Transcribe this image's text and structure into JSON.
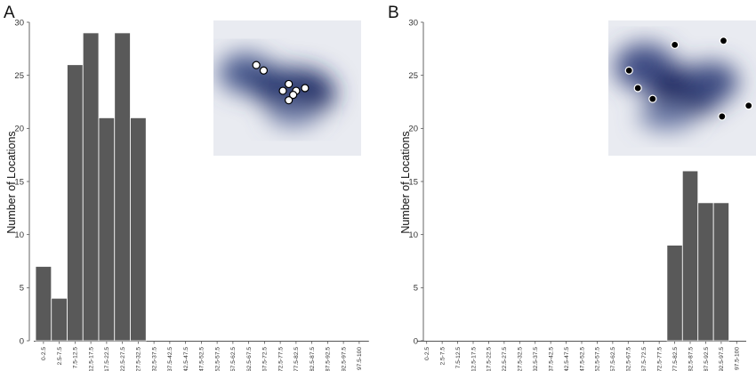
{
  "chart_data": [
    {
      "type": "bar",
      "panel_label": "A",
      "ylabel": "Number of Locations",
      "ylim": [
        0,
        30
      ],
      "yticks": [
        "0",
        "5",
        "10",
        "15",
        "20",
        "25",
        "30"
      ],
      "categories": [
        "0-2.5",
        "2.5-7.5",
        "7.5-12.5",
        "12.5-17.5",
        "17.5-22.5",
        "22.5-27.5",
        "27.5-32.5",
        "32.5-37.5",
        "37.5-42.5",
        "42.5-47.5",
        "47.5-52.5",
        "52.5-57.5",
        "57.5-62.5",
        "62.5-67.5",
        "67.5-72.5",
        "72.5-77.5",
        "77.5-82.5",
        "82.5-87.5",
        "87.5-92.5",
        "92.5-97.5",
        "97.5-100"
      ],
      "values": [
        7,
        4,
        26,
        29,
        21,
        29,
        21,
        0,
        0,
        0,
        0,
        0,
        0,
        0,
        0,
        0,
        0,
        0,
        0,
        0,
        0
      ],
      "inset": {
        "kind": "density-heatmap",
        "colors": {
          "low": "#e9ebf1",
          "high": "#0f1c52",
          "marker_fill": "#ffffff",
          "marker_stroke": "#000000"
        },
        "points": [
          [
            0.29,
            0.33
          ],
          [
            0.34,
            0.37
          ],
          [
            0.51,
            0.47
          ],
          [
            0.47,
            0.52
          ],
          [
            0.56,
            0.52
          ],
          [
            0.62,
            0.5
          ],
          [
            0.54,
            0.55
          ],
          [
            0.51,
            0.59
          ]
        ]
      }
    },
    {
      "type": "bar",
      "panel_label": "B",
      "ylabel": "Number of Locations",
      "ylim": [
        0,
        30
      ],
      "yticks": [
        "0",
        "5",
        "10",
        "15",
        "20",
        "25",
        "30"
      ],
      "categories": [
        "0-2.5",
        "2.5-7.5",
        "7.5-12.5",
        "12.5-17.5",
        "17.5-22.5",
        "22.5-27.5",
        "27.5-32.5",
        "32.5-37.5",
        "37.5-42.5",
        "42.5-47.5",
        "47.5-52.5",
        "52.5-57.5",
        "57.5-62.5",
        "62.5-67.5",
        "67.5-72.5",
        "72.5-77.5",
        "77.5-82.5",
        "82.5-87.5",
        "87.5-92.5",
        "92.5-97.5",
        "97.5-100"
      ],
      "values": [
        0,
        0,
        0,
        0,
        0,
        0,
        0,
        0,
        0,
        0,
        0,
        0,
        0,
        0,
        0,
        0,
        9,
        16,
        13,
        13,
        0
      ],
      "inset": {
        "kind": "density-heatmap",
        "colors": {
          "low": "#e9ebf1",
          "high": "#0f1c52",
          "marker_fill": "#000000",
          "marker_stroke": "#ffffff"
        },
        "points": [
          [
            0.45,
            0.18
          ],
          [
            0.78,
            0.15
          ],
          [
            0.14,
            0.37
          ],
          [
            0.2,
            0.5
          ],
          [
            0.3,
            0.58
          ],
          [
            0.77,
            0.71
          ],
          [
            0.95,
            0.63
          ]
        ]
      }
    }
  ]
}
